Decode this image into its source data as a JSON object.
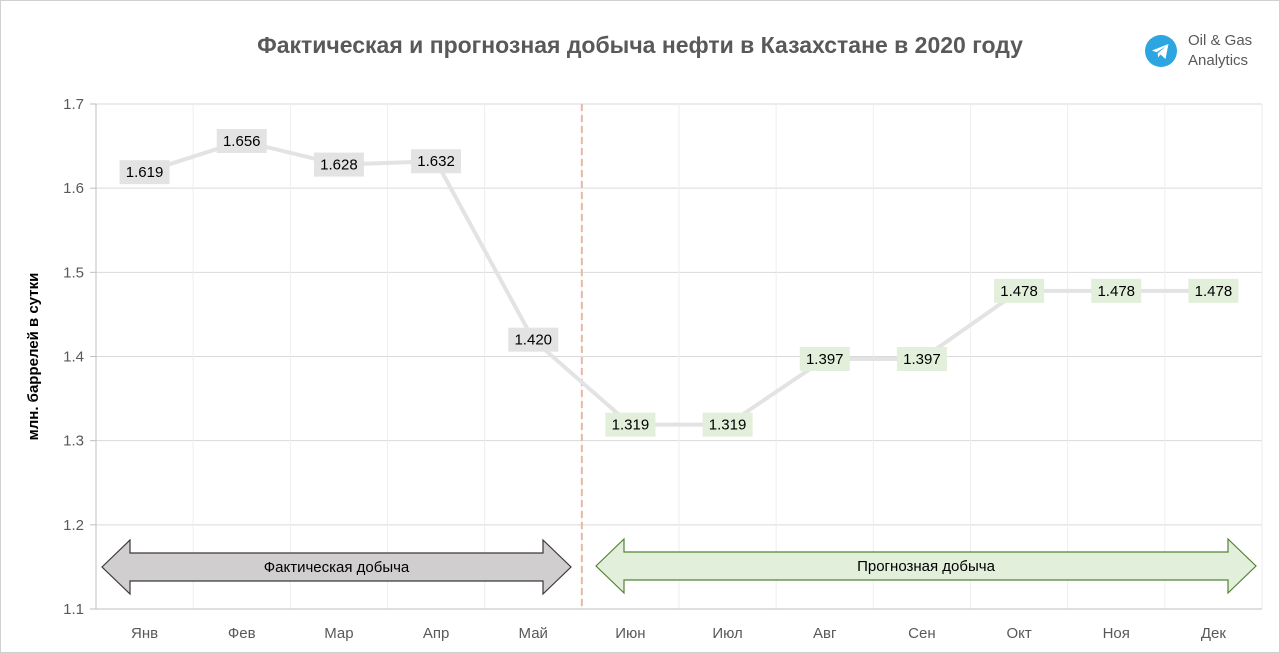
{
  "chart_data": {
    "type": "line",
    "title": "Фактическая и прогнозная добыча нефти в Казахстане в 2020 году",
    "ylabel": "млн. баррелей в сутки",
    "xlabel": "",
    "categories": [
      "Янв",
      "Фев",
      "Мар",
      "Апр",
      "Май",
      "Июн",
      "Июл",
      "Авг",
      "Сен",
      "Окт",
      "Ноя",
      "Дек"
    ],
    "values": [
      1.619,
      1.656,
      1.628,
      1.632,
      1.42,
      1.319,
      1.319,
      1.397,
      1.397,
      1.478,
      1.478,
      1.478
    ],
    "data_labels": [
      "1.619",
      "1.656",
      "1.628",
      "1.632",
      "1.420",
      "1.319",
      "1.319",
      "1.397",
      "1.397",
      "1.478",
      "1.478",
      "1.478"
    ],
    "ylim": [
      1.1,
      1.7
    ],
    "yticks": [
      "1.1",
      "1.2",
      "1.3",
      "1.4",
      "1.5",
      "1.6",
      "1.7"
    ],
    "grid": true,
    "legend": "none",
    "actual_count": 5,
    "colors": {
      "line": "#e3e3e3",
      "actual_label_bg": "#e3e3e3",
      "forecast_label_bg": "#e2efda",
      "divider": "#e6b9a0",
      "actual_arrow_fill": "#d0cece",
      "actual_arrow_stroke": "#3b3838",
      "forecast_arrow_fill": "#e2efda",
      "forecast_arrow_stroke": "#548235"
    },
    "annotations": {
      "actual": "Фактическая добыча",
      "forecast": "Прогнозная добыча"
    }
  },
  "brand": {
    "line1": "Oil & Gas",
    "line2": "Analytics",
    "icon": "telegram-icon",
    "icon_color": "#2ca5e0"
  }
}
